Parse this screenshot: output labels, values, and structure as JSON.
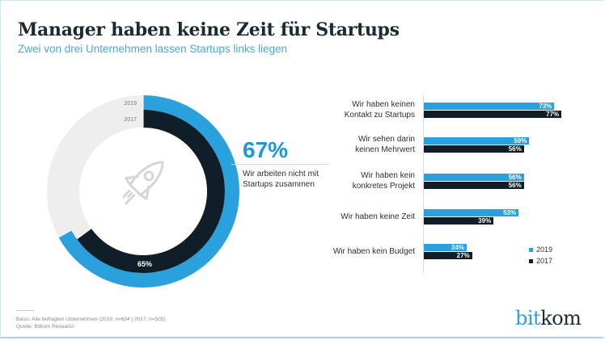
{
  "header": {
    "title": "Manager haben keine Zeit für Startups",
    "subtitle": "Zwei von drei Unternehmen lassen Startups links liegen"
  },
  "colors": {
    "accent_2019": "#2aa0dc",
    "dark_2017": "#0f1e28",
    "track": "#eeeeee",
    "subtitle": "#4aa8d8"
  },
  "highlight": {
    "value": "67%",
    "text_line1": "Wir arbeiten nicht mit",
    "text_line2": "Startups zusammen"
  },
  "footer": {
    "basis": "Basis: Alle befragten Unternehmen (2019: n=604 | 2017: n=505)",
    "source": "Quelle: Bitkom Research"
  },
  "logo": {
    "part1": "bit",
    "part2": "kom"
  },
  "chart_data": [
    {
      "type": "donut",
      "title": "Wir arbeiten nicht mit Startups zusammen",
      "series": [
        {
          "name": "2019",
          "value": 67,
          "label": "67%"
        },
        {
          "name": "2017",
          "value": 65,
          "label": "65%"
        }
      ],
      "ring_labels": [
        "2019",
        "2017"
      ],
      "max": 100,
      "icon": "rocket-icon"
    },
    {
      "type": "bar",
      "orientation": "horizontal",
      "categories": [
        [
          "Wir haben keinen",
          "Kontakt zu Startups"
        ],
        [
          "Wir sehen darin",
          "keinen Mehrwert"
        ],
        [
          "Wir haben kein",
          "konkretes Projekt"
        ],
        [
          "Wir haben keine Zeit"
        ],
        [
          "Wir haben kein Budget"
        ]
      ],
      "series": [
        {
          "name": "2019",
          "values": [
            73,
            59,
            56,
            53,
            24
          ]
        },
        {
          "name": "2017",
          "values": [
            77,
            56,
            56,
            39,
            27
          ]
        }
      ],
      "value_suffix": "%",
      "xlim": [
        0,
        100
      ],
      "legend": {
        "position": "bottom-right",
        "entries": [
          "2019",
          "2017"
        ]
      },
      "grid": false
    }
  ]
}
